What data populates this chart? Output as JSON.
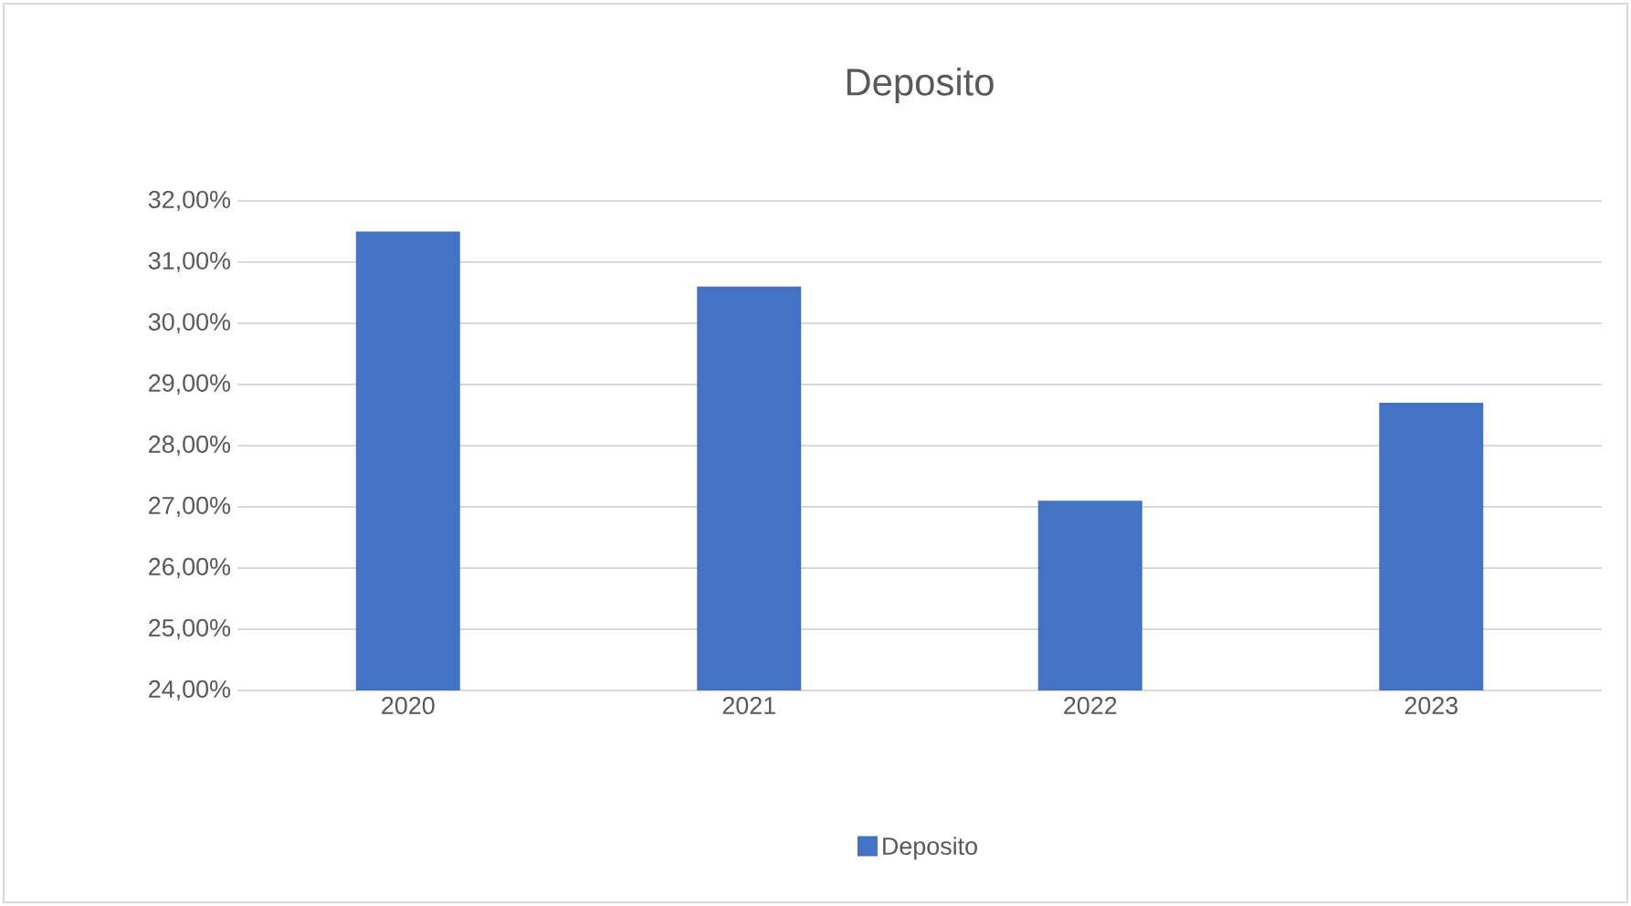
{
  "chart_data": {
    "type": "bar",
    "title": "Deposito",
    "categories": [
      "2020",
      "2021",
      "2022",
      "2023"
    ],
    "series": [
      {
        "name": "Deposito",
        "color": "#4472c4",
        "values": [
          31.5,
          30.6,
          27.1,
          28.7
        ]
      }
    ],
    "ylim": [
      24,
      32
    ],
    "yticks": [
      {
        "value": 24,
        "label": "24,00%"
      },
      {
        "value": 25,
        "label": "25,00%"
      },
      {
        "value": 26,
        "label": "26,00%"
      },
      {
        "value": 27,
        "label": "27,00%"
      },
      {
        "value": 28,
        "label": "28,00%"
      },
      {
        "value": 29,
        "label": "29,00%"
      },
      {
        "value": 30,
        "label": "30,00%"
      },
      {
        "value": 31,
        "label": "31,00%"
      },
      {
        "value": 32,
        "label": "32,00%"
      }
    ],
    "grid": "y",
    "legend": "bottom"
  }
}
